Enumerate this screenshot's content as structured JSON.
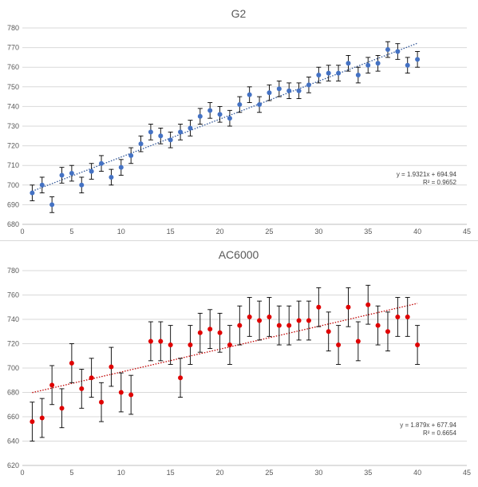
{
  "charts": [
    {
      "type": "scatter",
      "title": "G2",
      "xlim": [
        0,
        45
      ],
      "ylim": [
        680,
        780
      ],
      "xticks": [
        0,
        5,
        10,
        15,
        20,
        25,
        30,
        35,
        40,
        45
      ],
      "yticks": [
        680,
        690,
        700,
        710,
        720,
        730,
        740,
        750,
        760,
        770,
        780
      ],
      "grid": "horizontal",
      "marker_color": "#4472c4",
      "trendline_color": "#2f5597",
      "trendline": {
        "slope": 1.9321,
        "intercept": 694.94,
        "equation": "y = 1.9321x + 694.94",
        "r2": "R² = 0.9652"
      },
      "points": [
        {
          "x": 1,
          "y": 696,
          "err": 4
        },
        {
          "x": 2,
          "y": 700,
          "err": 4
        },
        {
          "x": 3,
          "y": 690,
          "err": 4
        },
        {
          "x": 4,
          "y": 705,
          "err": 4
        },
        {
          "x": 5,
          "y": 706,
          "err": 4
        },
        {
          "x": 6,
          "y": 700,
          "err": 4
        },
        {
          "x": 7,
          "y": 707,
          "err": 4
        },
        {
          "x": 8,
          "y": 711,
          "err": 4
        },
        {
          "x": 9,
          "y": 704,
          "err": 4
        },
        {
          "x": 10,
          "y": 709,
          "err": 4
        },
        {
          "x": 11,
          "y": 715,
          "err": 4
        },
        {
          "x": 12,
          "y": 721,
          "err": 4
        },
        {
          "x": 13,
          "y": 727,
          "err": 4
        },
        {
          "x": 14,
          "y": 725,
          "err": 4
        },
        {
          "x": 15,
          "y": 723,
          "err": 4
        },
        {
          "x": 16,
          "y": 727,
          "err": 4
        },
        {
          "x": 17,
          "y": 729,
          "err": 4
        },
        {
          "x": 18,
          "y": 735,
          "err": 4
        },
        {
          "x": 19,
          "y": 738,
          "err": 4
        },
        {
          "x": 20,
          "y": 736,
          "err": 4
        },
        {
          "x": 21,
          "y": 734,
          "err": 4
        },
        {
          "x": 22,
          "y": 741,
          "err": 4
        },
        {
          "x": 23,
          "y": 746,
          "err": 4
        },
        {
          "x": 24,
          "y": 741,
          "err": 4
        },
        {
          "x": 25,
          "y": 747,
          "err": 4
        },
        {
          "x": 26,
          "y": 749,
          "err": 4
        },
        {
          "x": 27,
          "y": 748,
          "err": 4
        },
        {
          "x": 28,
          "y": 748,
          "err": 4
        },
        {
          "x": 29,
          "y": 751,
          "err": 4
        },
        {
          "x": 30,
          "y": 756,
          "err": 4
        },
        {
          "x": 31,
          "y": 757,
          "err": 4
        },
        {
          "x": 32,
          "y": 757,
          "err": 4
        },
        {
          "x": 33,
          "y": 762,
          "err": 4
        },
        {
          "x": 34,
          "y": 756,
          "err": 4
        },
        {
          "x": 35,
          "y": 761,
          "err": 4
        },
        {
          "x": 36,
          "y": 762,
          "err": 4
        },
        {
          "x": 37,
          "y": 769,
          "err": 4
        },
        {
          "x": 38,
          "y": 768,
          "err": 4
        },
        {
          "x": 39,
          "y": 761,
          "err": 4
        },
        {
          "x": 40,
          "y": 764,
          "err": 4
        }
      ]
    },
    {
      "type": "scatter",
      "title": "AC6000",
      "xlim": [
        0,
        45
      ],
      "ylim": [
        620,
        780
      ],
      "xticks": [
        0,
        5,
        10,
        15,
        20,
        25,
        30,
        35,
        40,
        45
      ],
      "yticks": [
        620,
        640,
        660,
        680,
        700,
        720,
        740,
        760,
        780
      ],
      "grid": "horizontal",
      "marker_color": "#e00000",
      "trendline_color": "#c00000",
      "trendline": {
        "slope": 1.879,
        "intercept": 677.94,
        "equation": "y = 1.879x + 677.94",
        "r2": "R² = 0.6654"
      },
      "points": [
        {
          "x": 1,
          "y": 656,
          "err": 16
        },
        {
          "x": 2,
          "y": 659,
          "err": 16
        },
        {
          "x": 3,
          "y": 686,
          "err": 16
        },
        {
          "x": 4,
          "y": 667,
          "err": 16
        },
        {
          "x": 5,
          "y": 704,
          "err": 16
        },
        {
          "x": 6,
          "y": 683,
          "err": 16
        },
        {
          "x": 7,
          "y": 692,
          "err": 16
        },
        {
          "x": 8,
          "y": 672,
          "err": 16
        },
        {
          "x": 9,
          "y": 701,
          "err": 16
        },
        {
          "x": 10,
          "y": 680,
          "err": 16
        },
        {
          "x": 11,
          "y": 678,
          "err": 16
        },
        {
          "x": 13,
          "y": 722,
          "err": 16
        },
        {
          "x": 14,
          "y": 722,
          "err": 16
        },
        {
          "x": 15,
          "y": 719,
          "err": 16
        },
        {
          "x": 16,
          "y": 692,
          "err": 16
        },
        {
          "x": 17,
          "y": 719,
          "err": 16
        },
        {
          "x": 18,
          "y": 729,
          "err": 16
        },
        {
          "x": 19,
          "y": 732,
          "err": 16
        },
        {
          "x": 20,
          "y": 729,
          "err": 16
        },
        {
          "x": 21,
          "y": 719,
          "err": 16
        },
        {
          "x": 22,
          "y": 735,
          "err": 16
        },
        {
          "x": 23,
          "y": 742,
          "err": 16
        },
        {
          "x": 24,
          "y": 739,
          "err": 16
        },
        {
          "x": 25,
          "y": 742,
          "err": 16
        },
        {
          "x": 26,
          "y": 735,
          "err": 16
        },
        {
          "x": 27,
          "y": 735,
          "err": 16
        },
        {
          "x": 28,
          "y": 739,
          "err": 16
        },
        {
          "x": 29,
          "y": 739,
          "err": 16
        },
        {
          "x": 30,
          "y": 750,
          "err": 16
        },
        {
          "x": 31,
          "y": 730,
          "err": 16
        },
        {
          "x": 32,
          "y": 719,
          "err": 16
        },
        {
          "x": 33,
          "y": 750,
          "err": 16
        },
        {
          "x": 34,
          "y": 722,
          "err": 16
        },
        {
          "x": 35,
          "y": 752,
          "err": 16
        },
        {
          "x": 36,
          "y": 735,
          "err": 16
        },
        {
          "x": 37,
          "y": 730,
          "err": 16
        },
        {
          "x": 38,
          "y": 742,
          "err": 16
        },
        {
          "x": 39,
          "y": 742,
          "err": 16
        },
        {
          "x": 40,
          "y": 719,
          "err": 16
        }
      ]
    }
  ],
  "chart_data": [
    {
      "type": "scatter",
      "title": "G2",
      "xlabel": "",
      "ylabel": "",
      "xlim": [
        0,
        45
      ],
      "ylim": [
        680,
        780
      ],
      "grid": true,
      "legend": "none",
      "trendline": "y = 1.9321x + 694.94",
      "r2": "R² = 0.9652",
      "x": [
        1,
        2,
        3,
        4,
        5,
        6,
        7,
        8,
        9,
        10,
        11,
        12,
        13,
        14,
        15,
        16,
        17,
        18,
        19,
        20,
        21,
        22,
        23,
        24,
        25,
        26,
        27,
        28,
        29,
        30,
        31,
        32,
        33,
        34,
        35,
        36,
        37,
        38,
        39,
        40
      ],
      "y": [
        696,
        700,
        690,
        705,
        706,
        700,
        707,
        711,
        704,
        709,
        715,
        721,
        727,
        725,
        723,
        727,
        729,
        735,
        738,
        736,
        734,
        741,
        746,
        741,
        747,
        749,
        748,
        748,
        751,
        756,
        757,
        757,
        762,
        756,
        761,
        762,
        769,
        768,
        761,
        764
      ],
      "error": 4
    },
    {
      "type": "scatter",
      "title": "AC6000",
      "xlabel": "",
      "ylabel": "",
      "xlim": [
        0,
        45
      ],
      "ylim": [
        620,
        780
      ],
      "grid": true,
      "legend": "none",
      "trendline": "y = 1.879x + 677.94",
      "r2": "R² = 0.6654",
      "x": [
        1,
        2,
        3,
        4,
        5,
        6,
        7,
        8,
        9,
        10,
        11,
        13,
        14,
        15,
        16,
        17,
        18,
        19,
        20,
        21,
        22,
        23,
        24,
        25,
        26,
        27,
        28,
        29,
        30,
        31,
        32,
        33,
        34,
        35,
        36,
        37,
        38,
        39,
        40
      ],
      "y": [
        656,
        659,
        686,
        667,
        704,
        683,
        692,
        672,
        701,
        680,
        678,
        722,
        722,
        719,
        692,
        719,
        729,
        732,
        729,
        719,
        735,
        742,
        739,
        742,
        735,
        735,
        739,
        739,
        750,
        730,
        719,
        750,
        722,
        752,
        735,
        730,
        742,
        742,
        719
      ],
      "error": 16
    }
  ]
}
